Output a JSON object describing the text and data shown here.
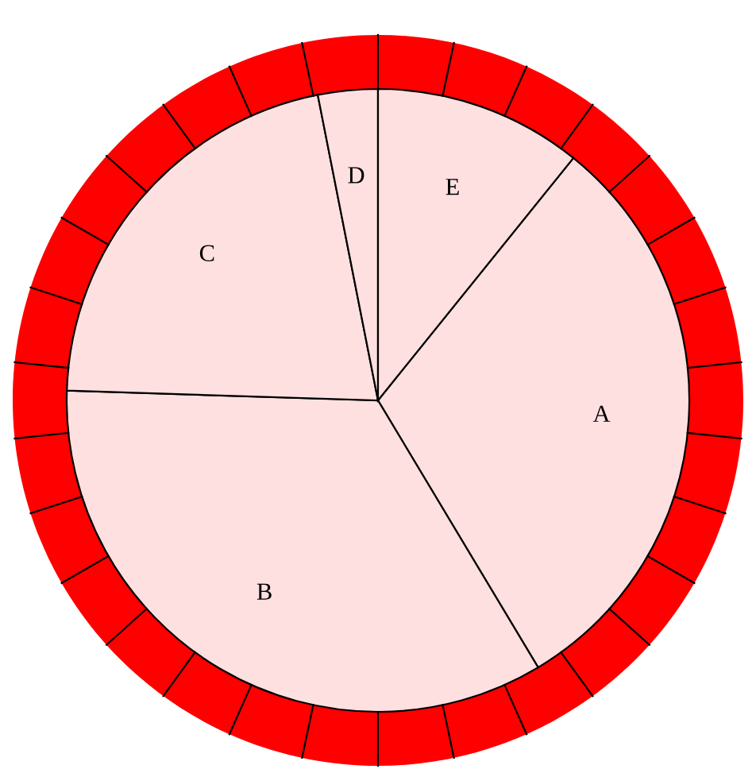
{
  "chart_data": {
    "type": "pie",
    "categories": [
      "A",
      "B",
      "C",
      "D",
      "E"
    ],
    "values": [
      30.6,
      34.1,
      21.4,
      3.1,
      10.8
    ],
    "colors": [
      "#ffe0e0",
      "#ffe0e0",
      "#ffe0e0",
      "#ffe0e0",
      "#ffe0e0"
    ],
    "legend": false
  }
}
